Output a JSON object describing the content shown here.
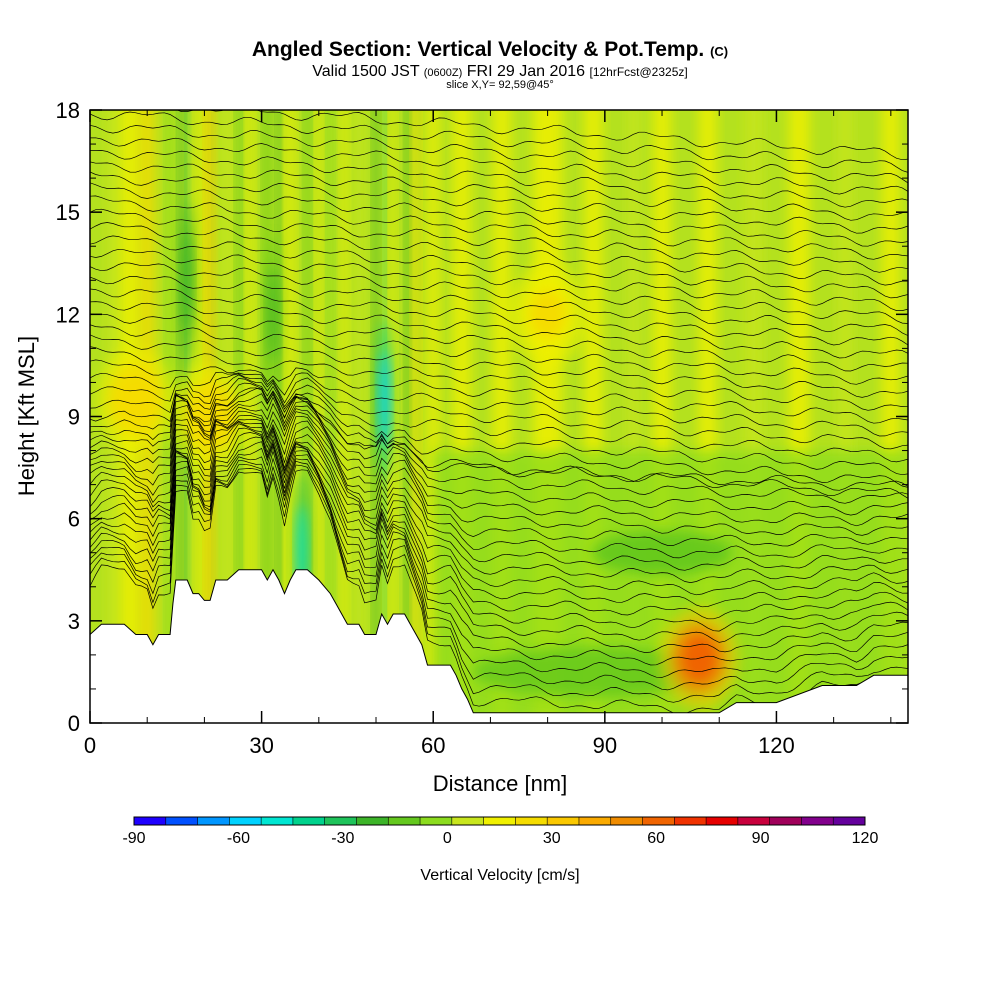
{
  "header": {
    "title": "Angled Section: Vertical Velocity & Pot.Temp.",
    "title_unit": "(C)",
    "valid_prefix": "Valid 1500 JST",
    "valid_utc": "(0600Z)",
    "valid_date": "FRI 29 Jan 2016",
    "forecast": "[12hrFcst@2325z]",
    "slice": "slice X,Y= 92,59@45°"
  },
  "chart_data": {
    "type": "heatmap",
    "xlabel": "Distance [nm]",
    "ylabel": "Height [Kft MSL]",
    "xlim": [
      0,
      143
    ],
    "ylim": [
      0,
      18
    ],
    "xticks": [
      0,
      30,
      60,
      90,
      120
    ],
    "yticks": [
      0,
      3,
      6,
      9,
      12,
      15,
      18
    ],
    "terrain": [
      [
        0,
        2.6
      ],
      [
        2,
        2.9
      ],
      [
        6,
        2.9
      ],
      [
        8,
        2.6
      ],
      [
        10,
        2.6
      ],
      [
        11,
        2.3
      ],
      [
        12,
        2.6
      ],
      [
        14,
        2.6
      ],
      [
        14.5,
        3.5
      ],
      [
        15,
        4.2
      ],
      [
        17,
        4.2
      ],
      [
        18,
        3.8
      ],
      [
        19,
        3.8
      ],
      [
        20,
        3.6
      ],
      [
        21,
        3.6
      ],
      [
        22,
        4.2
      ],
      [
        24,
        4.2
      ],
      [
        26,
        4.5
      ],
      [
        28,
        4.5
      ],
      [
        30,
        4.5
      ],
      [
        31,
        4.2
      ],
      [
        32,
        4.5
      ],
      [
        33,
        4.2
      ],
      [
        34,
        3.8
      ],
      [
        35,
        4.2
      ],
      [
        36,
        4.5
      ],
      [
        38,
        4.5
      ],
      [
        40,
        4.2
      ],
      [
        42,
        3.8
      ],
      [
        43,
        3.5
      ],
      [
        44,
        3.2
      ],
      [
        45,
        2.9
      ],
      [
        47,
        2.9
      ],
      [
        48,
        2.6
      ],
      [
        50,
        2.6
      ],
      [
        51,
        3.2
      ],
      [
        52,
        2.9
      ],
      [
        53,
        3.2
      ],
      [
        55,
        3.2
      ],
      [
        56,
        2.9
      ],
      [
        57,
        2.6
      ],
      [
        58,
        2.3
      ],
      [
        59,
        1.7
      ],
      [
        63,
        1.7
      ],
      [
        64,
        1.4
      ],
      [
        65,
        1.0
      ],
      [
        66,
        0.7
      ],
      [
        67,
        0.3
      ],
      [
        70,
        0.3
      ],
      [
        75,
        0.3
      ],
      [
        80,
        0.3
      ],
      [
        85,
        0.3
      ],
      [
        90,
        0.3
      ],
      [
        95,
        0.3
      ],
      [
        100,
        0.3
      ],
      [
        105,
        0.3
      ],
      [
        110,
        0.3
      ],
      [
        113,
        0.6
      ],
      [
        120,
        0.6
      ],
      [
        128,
        1.1
      ],
      [
        134,
        1.1
      ],
      [
        137,
        1.4
      ],
      [
        143,
        1.4
      ]
    ],
    "features": [
      {
        "label": "updraft",
        "x": 106.5,
        "y": 1.9,
        "value": 60
      },
      {
        "label": "updraft",
        "x": 8,
        "y": 9.5,
        "value": 25
      },
      {
        "label": "updraft",
        "x": 21,
        "y": 9.0,
        "value": 25
      },
      {
        "label": "updraft",
        "x": 80,
        "y": 12.0,
        "value": 20
      },
      {
        "label": "downdraft",
        "x": 51.5,
        "y": 9.5,
        "value": -55
      },
      {
        "label": "downdraft",
        "x": 37,
        "y": 5.0,
        "value": -50
      },
      {
        "label": "downdraft",
        "x": 17,
        "y": 13.0,
        "value": -25
      },
      {
        "label": "downdraft",
        "x": 32,
        "y": 12.0,
        "value": -20
      }
    ],
    "colorbar": {
      "label": "Vertical Velocity [cm/s]",
      "ticks": [
        -90,
        -60,
        -30,
        0,
        30,
        60,
        90,
        120
      ],
      "min": -90,
      "max": 120,
      "colors": [
        "#1e00ff",
        "#0050ff",
        "#0096ff",
        "#00d2ff",
        "#00e6d2",
        "#00d28c",
        "#1ec35a",
        "#3cb428",
        "#64c81e",
        "#8cdc1e",
        "#c8e61e",
        "#f0f000",
        "#f5dc00",
        "#fac800",
        "#faaa00",
        "#f08c00",
        "#f06400",
        "#f03200",
        "#e60000",
        "#c8003c",
        "#a0005a",
        "#82008c",
        "#64009c"
      ]
    }
  }
}
